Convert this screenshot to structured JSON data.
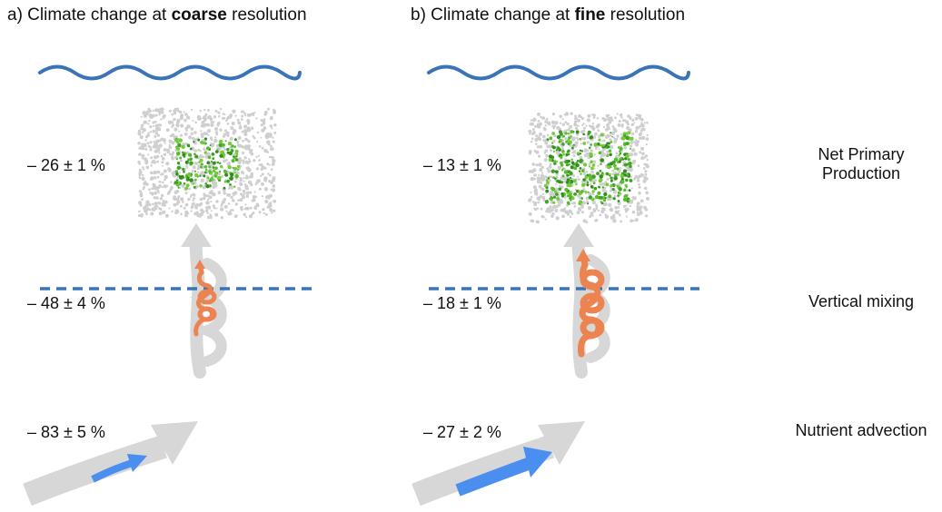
{
  "panel_a": {
    "title_prefix": "a) Climate change at ",
    "title_bold": "coarse",
    "title_suffix": " resolution",
    "npp_value": "– 26 ± 1 %",
    "mixing_value": "– 48 ± 4 %",
    "advection_value": "– 83 ± 5 %"
  },
  "panel_b": {
    "title_prefix": "b) Climate change at ",
    "title_bold": "fine",
    "title_suffix": " resolution",
    "npp_value": "– 13 ± 1 %",
    "mixing_value": "– 18 ± 1 %",
    "advection_value": "– 27 ± 2 %"
  },
  "labels": {
    "npp_line1": "Net Primary",
    "npp_line2": "Production",
    "mixing": "Vertical mixing",
    "advection": "Nutrient advection"
  },
  "colors": {
    "surface_wave": "#3a74b8",
    "mixed_layer": "#3a74b8",
    "gray_arrow": "#d7d7d7",
    "coil": "#ec8452",
    "advection_arrow": "#4a8ef0",
    "phyto_green": "#4fb028",
    "phyto_gray": "#cfcfcf"
  }
}
